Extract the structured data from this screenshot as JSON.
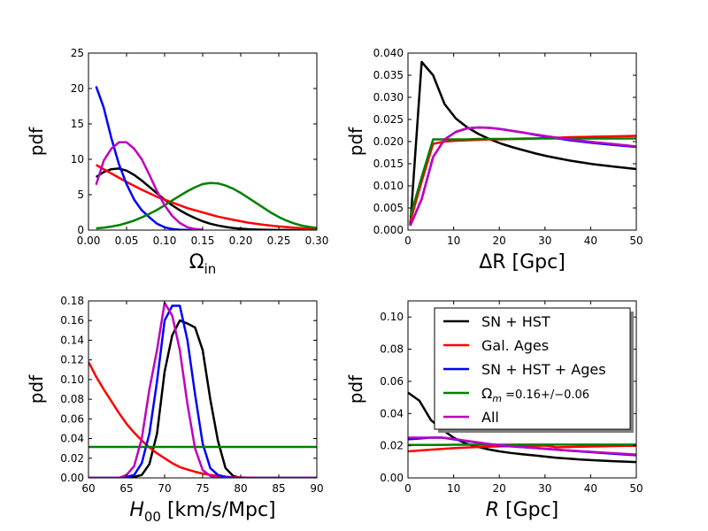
{
  "chart_data": [
    {
      "type": "line",
      "ylabel": "pdf",
      "xlabel_main": "Ω",
      "xlabel_sub": "in",
      "xlim": [
        0,
        0.3
      ],
      "ylim": [
        0,
        25
      ],
      "xticks": [
        0,
        0.05,
        0.1,
        0.15,
        0.2,
        0.25,
        0.3
      ],
      "xtick_labels": [
        "0.00",
        "0.05",
        "0.10",
        "0.15",
        "0.20",
        "0.25",
        "0.30"
      ],
      "yticks": [
        0,
        5,
        10,
        15,
        20,
        25
      ],
      "ytick_labels": [
        "0",
        "5",
        "10",
        "15",
        "20",
        "25"
      ],
      "series": [
        {
          "name": "SN + HST",
          "color": "#000000",
          "x": [
            0.01,
            0.02,
            0.03,
            0.04,
            0.05,
            0.06,
            0.07,
            0.08,
            0.09,
            0.1,
            0.11,
            0.12,
            0.13,
            0.14,
            0.15,
            0.16,
            0.17,
            0.18,
            0.19,
            0.2,
            0.21,
            0.22,
            0.23,
            0.24,
            0.25,
            0.26,
            0.27,
            0.28,
            0.29,
            0.3
          ],
          "y": [
            7.5,
            8.2,
            8.6,
            8.7,
            8.4,
            7.8,
            7.0,
            6.1,
            5.2,
            4.3,
            3.5,
            2.8,
            2.2,
            1.7,
            1.25,
            0.9,
            0.65,
            0.45,
            0.3,
            0.2,
            0.13,
            0.08,
            0.05,
            0.03,
            0.02,
            0.01,
            0.005,
            0.003,
            0.002,
            0.001
          ]
        },
        {
          "name": "Gal. Ages",
          "color": "#ff0000",
          "x": [
            0.01,
            0.03,
            0.05,
            0.07,
            0.09,
            0.11,
            0.13,
            0.15,
            0.17,
            0.19,
            0.21,
            0.23,
            0.25,
            0.27,
            0.29,
            0.3
          ],
          "y": [
            9.2,
            8.0,
            6.8,
            5.7,
            4.7,
            3.9,
            3.1,
            2.5,
            1.9,
            1.45,
            1.05,
            0.75,
            0.52,
            0.34,
            0.2,
            0.15
          ]
        },
        {
          "name": "SN + HST + Ages",
          "color": "#0000ff",
          "x": [
            0.01,
            0.02,
            0.03,
            0.04,
            0.05,
            0.06,
            0.07,
            0.08,
            0.09,
            0.1,
            0.11,
            0.12,
            0.13,
            0.14,
            0.15
          ],
          "y": [
            20.3,
            17.3,
            13.0,
            9.3,
            6.5,
            4.3,
            2.8,
            1.8,
            0.9,
            0.4,
            0.15,
            0.05,
            0.02,
            0.01,
            0.0
          ]
        },
        {
          "name": "Ω_m =0.16+/−0.06",
          "color": "#008000",
          "x": [
            0.01,
            0.02,
            0.03,
            0.04,
            0.05,
            0.06,
            0.07,
            0.08,
            0.09,
            0.1,
            0.11,
            0.12,
            0.13,
            0.14,
            0.15,
            0.16,
            0.17,
            0.18,
            0.19,
            0.2,
            0.21,
            0.22,
            0.23,
            0.24,
            0.25,
            0.26,
            0.27,
            0.28,
            0.29,
            0.3
          ],
          "y": [
            0.25,
            0.35,
            0.5,
            0.7,
            1.0,
            1.35,
            1.8,
            2.3,
            2.85,
            3.5,
            4.2,
            4.85,
            5.5,
            6.05,
            6.5,
            6.65,
            6.6,
            6.3,
            5.85,
            5.25,
            4.55,
            3.85,
            3.15,
            2.45,
            1.85,
            1.35,
            0.95,
            0.65,
            0.45,
            0.3
          ]
        },
        {
          "name": "All",
          "color": "#bf00bf",
          "x": [
            0.01,
            0.02,
            0.03,
            0.04,
            0.05,
            0.06,
            0.07,
            0.08,
            0.09,
            0.1,
            0.11,
            0.12,
            0.13,
            0.14,
            0.15
          ],
          "y": [
            6.4,
            9.8,
            11.5,
            12.4,
            12.4,
            11.5,
            10.0,
            7.8,
            5.5,
            3.5,
            2.0,
            1.0,
            0.4,
            0.15,
            0.05
          ]
        }
      ]
    },
    {
      "type": "line",
      "ylabel": "pdf",
      "xlabel_main": "ΔR [Gpc]",
      "xlim": [
        0,
        50
      ],
      "ylim": [
        0,
        0.04
      ],
      "xticks": [
        0,
        10,
        20,
        30,
        40,
        50
      ],
      "xtick_labels": [
        "0",
        "10",
        "20",
        "30",
        "40",
        "50"
      ],
      "yticks": [
        0,
        0.005,
        0.01,
        0.015,
        0.02,
        0.025,
        0.03,
        0.035,
        0.04
      ],
      "ytick_labels": [
        "0.000",
        "0.005",
        "0.010",
        "0.015",
        "0.020",
        "0.025",
        "0.030",
        "0.035",
        "0.040"
      ],
      "series": [
        {
          "name": "SN + HST",
          "color": "#000000",
          "x": [
            0.5,
            3,
            5.5,
            8,
            10.5,
            13,
            15.5,
            18,
            20.5,
            23,
            25.5,
            28,
            30.5,
            35.5,
            40.5,
            45.5,
            50
          ],
          "y": [
            0.001,
            0.038,
            0.035,
            0.0285,
            0.0252,
            0.0232,
            0.0217,
            0.0205,
            0.0195,
            0.0187,
            0.018,
            0.0173,
            0.0167,
            0.0157,
            0.0149,
            0.0143,
            0.0138
          ]
        },
        {
          "name": "Gal. Ages",
          "color": "#ff0000",
          "x": [
            0.5,
            3,
            5.5,
            8,
            10.5,
            13,
            15.5,
            18,
            20.5,
            23,
            25.5,
            28,
            30.5,
            35.5,
            40.5,
            45.5,
            50
          ],
          "y": [
            0.002,
            0.011,
            0.0195,
            0.02,
            0.0202,
            0.0203,
            0.0204,
            0.0205,
            0.0205,
            0.0206,
            0.0207,
            0.0207,
            0.0208,
            0.021,
            0.0211,
            0.0212,
            0.0213
          ]
        },
        {
          "name": "SN + HST + Ages",
          "color": "#0000ff",
          "x": [
            0.5,
            3,
            5.5,
            8,
            10.5,
            13,
            15.5,
            18,
            20.5,
            23,
            25.5,
            28,
            30.5,
            35.5,
            40.5,
            45.5,
            50
          ],
          "y": [
            0.001,
            0.007,
            0.0165,
            0.0205,
            0.0222,
            0.023,
            0.0232,
            0.0231,
            0.0228,
            0.0224,
            0.022,
            0.0215,
            0.0211,
            0.0203,
            0.0197,
            0.0192,
            0.0188
          ]
        },
        {
          "name": "Ω_m =0.16+/−0.06",
          "color": "#008000",
          "x": [
            0.5,
            3,
            5.5,
            8,
            10.5,
            13,
            15.5,
            18,
            20.5,
            23,
            25.5,
            28,
            30.5,
            35.5,
            40.5,
            45.5,
            50
          ],
          "y": [
            0.003,
            0.012,
            0.0205,
            0.0205,
            0.0205,
            0.0205,
            0.0206,
            0.0206,
            0.0206,
            0.0206,
            0.0206,
            0.0207,
            0.0207,
            0.0207,
            0.0207,
            0.0207,
            0.0207
          ]
        },
        {
          "name": "All",
          "color": "#bf00bf",
          "x": [
            0.5,
            3,
            5.5,
            8,
            10.5,
            13,
            15.5,
            18,
            20.5,
            23,
            25.5,
            28,
            30.5,
            35.5,
            40.5,
            45.5,
            50
          ],
          "y": [
            0.001,
            0.007,
            0.0165,
            0.0205,
            0.0222,
            0.023,
            0.0232,
            0.0231,
            0.0228,
            0.0224,
            0.022,
            0.0216,
            0.0212,
            0.0205,
            0.0199,
            0.0194,
            0.0189
          ]
        }
      ]
    },
    {
      "type": "line",
      "ylabel": "pdf",
      "xlabel_main": "H",
      "xlabel_sub": "00",
      "xlabel_units": " [km/s/Mpc]",
      "xlim": [
        60,
        90
      ],
      "ylim": [
        0,
        0.18
      ],
      "xticks": [
        60,
        65,
        70,
        75,
        80,
        85,
        90
      ],
      "xtick_labels": [
        "60",
        "65",
        "70",
        "75",
        "80",
        "85",
        "90"
      ],
      "yticks": [
        0,
        0.02,
        0.04,
        0.06,
        0.08,
        0.1,
        0.12,
        0.14,
        0.16,
        0.18
      ],
      "ytick_labels": [
        "0.00",
        "0.02",
        "0.04",
        "0.06",
        "0.08",
        "0.10",
        "0.12",
        "0.14",
        "0.16",
        "0.18"
      ],
      "series": [
        {
          "name": "SN + HST",
          "color": "#000000",
          "x": [
            60,
            62,
            64,
            65,
            66,
            67,
            68,
            69,
            70,
            71,
            72,
            73,
            74,
            75,
            76,
            77,
            78,
            79,
            80,
            81,
            82,
            90
          ],
          "y": [
            0,
            0,
            0,
            0,
            0.001,
            0.003,
            0.014,
            0.045,
            0.108,
            0.145,
            0.16,
            0.157,
            0.153,
            0.13,
            0.08,
            0.038,
            0.01,
            0.002,
            0,
            0,
            0,
            0
          ]
        },
        {
          "name": "Gal. Ages",
          "color": "#ff0000",
          "x": [
            60,
            61,
            62,
            63,
            64,
            65,
            66,
            67,
            68,
            69,
            70,
            71,
            72,
            73,
            74,
            75,
            76,
            77,
            78,
            79,
            80,
            81,
            82
          ],
          "y": [
            0.118,
            0.103,
            0.09,
            0.078,
            0.066,
            0.055,
            0.046,
            0.038,
            0.031,
            0.025,
            0.02,
            0.015,
            0.011,
            0.0085,
            0.0062,
            0.0044,
            0.003,
            0.002,
            0.0012,
            0.0007,
            0.0004,
            0.0002,
            0.0001
          ]
        },
        {
          "name": "SN + HST + Ages",
          "color": "#0000ff",
          "x": [
            60,
            64,
            65,
            66,
            67,
            68,
            69,
            70,
            71,
            72,
            73,
            74,
            75,
            76,
            77,
            78,
            79,
            80,
            90
          ],
          "y": [
            0,
            0,
            0.001,
            0.003,
            0.015,
            0.045,
            0.098,
            0.16,
            0.175,
            0.175,
            0.14,
            0.085,
            0.035,
            0.01,
            0.003,
            0.001,
            0,
            0,
            0
          ]
        },
        {
          "name": "Ω_m =0.16+/−0.06",
          "color": "#008000",
          "x": [
            60,
            90
          ],
          "y": [
            0.0315,
            0.0315
          ]
        },
        {
          "name": "All",
          "color": "#bf00bf",
          "x": [
            60,
            64,
            65,
            66,
            67,
            68,
            69,
            70,
            71,
            72,
            73,
            74,
            75,
            76,
            77,
            78,
            79,
            80,
            90
          ],
          "y": [
            0,
            0,
            0.003,
            0.012,
            0.04,
            0.09,
            0.13,
            0.178,
            0.165,
            0.13,
            0.075,
            0.03,
            0.008,
            0.002,
            0,
            0,
            0,
            0,
            0
          ]
        }
      ]
    },
    {
      "type": "line",
      "ylabel": "pdf",
      "xlabel_main": "R",
      "xlabel_units": " [Gpc]",
      "xlim": [
        0,
        50
      ],
      "ylim": [
        0,
        0.11
      ],
      "xticks": [
        0,
        10,
        20,
        30,
        40,
        50
      ],
      "xtick_labels": [
        "0",
        "10",
        "20",
        "30",
        "40",
        "50"
      ],
      "yticks": [
        0,
        0.02,
        0.04,
        0.06,
        0.08,
        0.1
      ],
      "ytick_labels": [
        "0.00",
        "0.02",
        "0.04",
        "0.06",
        "0.08",
        "0.10"
      ],
      "legend": {
        "location": "top-right",
        "entries": [
          {
            "label": "SN + HST",
            "color": "#000000"
          },
          {
            "label": "Gal. Ages",
            "color": "#ff0000"
          },
          {
            "label": "SN + HST + Ages",
            "color": "#0000ff"
          },
          {
            "label_main": "Ω",
            "label_sub": "m",
            "label_rest": " =0.16+/−0.06",
            "color": "#008000"
          },
          {
            "label": "All",
            "color": "#bf00bf"
          }
        ]
      },
      "series": [
        {
          "name": "SN + HST",
          "color": "#000000",
          "x": [
            0,
            2.5,
            5,
            7.5,
            10,
            12.5,
            15,
            17.5,
            20,
            22.5,
            25,
            27.5,
            30,
            32.5,
            35,
            37.5,
            40,
            42.5,
            45,
            47.5,
            50
          ],
          "y": [
            0.053,
            0.048,
            0.036,
            0.03,
            0.025,
            0.0215,
            0.0195,
            0.0178,
            0.0165,
            0.0155,
            0.0147,
            0.014,
            0.0133,
            0.0125,
            0.012,
            0.0115,
            0.0111,
            0.0107,
            0.0104,
            0.0101,
            0.0098
          ]
        },
        {
          "name": "Gal. Ages",
          "color": "#ff0000",
          "x": [
            0,
            5,
            10,
            15,
            20,
            25,
            30,
            32.5,
            35,
            40,
            45,
            50
          ],
          "y": [
            0.0165,
            0.0175,
            0.0185,
            0.0192,
            0.0196,
            0.0199,
            0.0201,
            0.019,
            0.0192,
            0.0195,
            0.0198,
            0.02
          ]
        },
        {
          "name": "SN + HST + Ages",
          "color": "#0000ff",
          "x": [
            0,
            2.5,
            5,
            7.5,
            10,
            12.5,
            15,
            17.5,
            20,
            22.5,
            25,
            27.5,
            30,
            32.5,
            35,
            40,
            45,
            50
          ],
          "y": [
            0.024,
            0.0245,
            0.025,
            0.025,
            0.024,
            0.023,
            0.022,
            0.021,
            0.0202,
            0.0196,
            0.0191,
            0.0186,
            0.0181,
            0.0175,
            0.017,
            0.016,
            0.015,
            0.0141
          ]
        },
        {
          "name": "Ω_m =0.16+/−0.06",
          "color": "#008000",
          "x": [
            0,
            5,
            10,
            15,
            20,
            25,
            30,
            35,
            40,
            45,
            50
          ],
          "y": [
            0.0205,
            0.0205,
            0.0206,
            0.0206,
            0.0206,
            0.0207,
            0.0207,
            0.0207,
            0.0207,
            0.0207,
            0.0207
          ]
        },
        {
          "name": "All",
          "color": "#bf00bf",
          "x": [
            0,
            2.5,
            5,
            7.5,
            10,
            12.5,
            15,
            17.5,
            20,
            22.5,
            25,
            27.5,
            30,
            32.5,
            35,
            40,
            45,
            50
          ],
          "y": [
            0.025,
            0.025,
            0.025,
            0.025,
            0.0243,
            0.0232,
            0.0222,
            0.0212,
            0.0204,
            0.0198,
            0.0192,
            0.0187,
            0.0182,
            0.0176,
            0.0171,
            0.0162,
            0.0153,
            0.0145
          ]
        }
      ]
    }
  ]
}
